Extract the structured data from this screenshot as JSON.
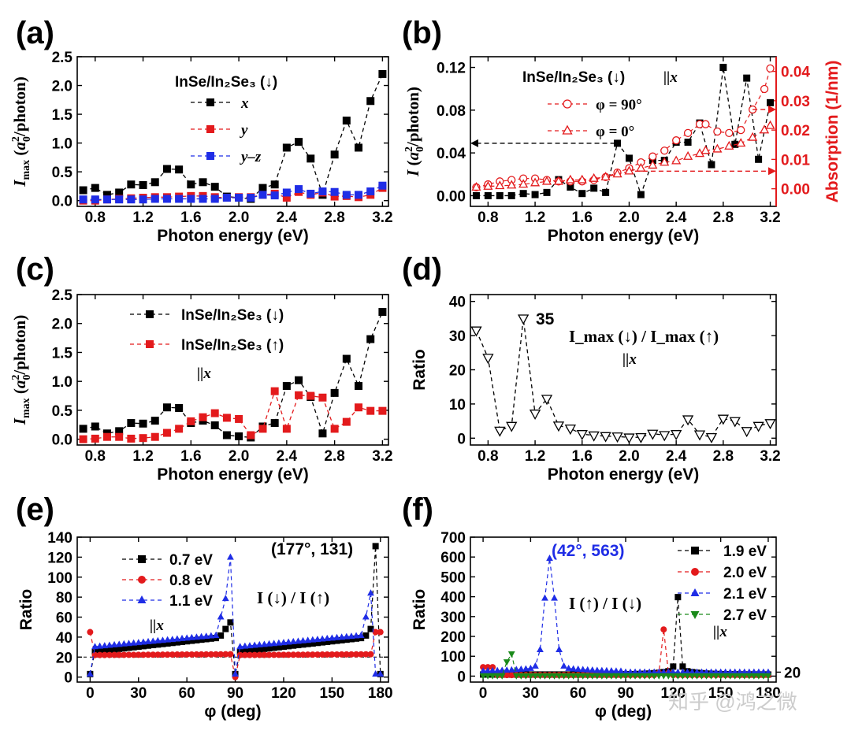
{
  "watermark": "知乎 @鸿之微",
  "chart_data": [
    {
      "id": "a",
      "panel_label": "(a)",
      "type": "line",
      "xlabel": "Photon energy (eV)",
      "ylabel": "I_max (a_0^2/photon)",
      "xlim": [
        0.65,
        3.25
      ],
      "ylim": [
        -0.1,
        2.5
      ],
      "xticks": [
        "0.8",
        "1.2",
        "1.6",
        "2.0",
        "2.4",
        "2.8",
        "3.2"
      ],
      "yticks": [
        "0.0",
        "0.5",
        "1.0",
        "1.5",
        "2.0",
        "2.5"
      ],
      "legend_title": "InSe/In₂Se₃ (↓)",
      "x": [
        0.7,
        0.8,
        0.9,
        1.0,
        1.1,
        1.2,
        1.3,
        1.4,
        1.5,
        1.6,
        1.7,
        1.8,
        1.9,
        2.0,
        2.1,
        2.2,
        2.3,
        2.4,
        2.5,
        2.6,
        2.7,
        2.8,
        2.9,
        3.0,
        3.1,
        3.2
      ],
      "series": [
        {
          "name": "x",
          "color": "#000000",
          "marker": "square",
          "values": [
            0.18,
            0.22,
            0.1,
            0.14,
            0.28,
            0.27,
            0.32,
            0.55,
            0.54,
            0.28,
            0.32,
            0.24,
            0.07,
            0.05,
            0.03,
            0.22,
            0.28,
            0.92,
            1.02,
            0.73,
            0.1,
            0.8,
            1.39,
            0.92,
            1.73,
            2.2
          ]
        },
        {
          "name": "y",
          "color": "#e31a1c",
          "marker": "square",
          "values": [
            0.0,
            0.0,
            0.02,
            0.03,
            0.04,
            0.05,
            0.06,
            0.06,
            0.07,
            0.08,
            0.08,
            0.06,
            0.05,
            0.06,
            0.06,
            0.1,
            0.12,
            0.05,
            0.15,
            0.1,
            0.14,
            0.07,
            0.08,
            0.06,
            0.1,
            0.22
          ]
        },
        {
          "name": "y–z",
          "color": "#1f2de6",
          "marker": "square",
          "values": [
            0.02,
            0.02,
            0.02,
            0.02,
            0.02,
            0.02,
            0.03,
            0.03,
            0.03,
            0.03,
            0.03,
            0.03,
            0.05,
            0.05,
            0.05,
            0.1,
            0.09,
            0.14,
            0.2,
            0.12,
            0.16,
            0.15,
            0.1,
            0.1,
            0.16,
            0.26
          ]
        }
      ]
    },
    {
      "id": "b",
      "panel_label": "(b)",
      "type": "line",
      "xlabel": "Photon energy (eV)",
      "ylabel": "I (a_0^2/photon)",
      "y2label": "Absorption (1/nm)",
      "xlim": [
        0.65,
        3.25
      ],
      "ylim": [
        -0.01,
        0.13
      ],
      "y2lim": [
        -0.006,
        0.045
      ],
      "xticks": [
        "0.8",
        "1.2",
        "1.6",
        "2.0",
        "2.4",
        "2.8",
        "3.2"
      ],
      "yticks": [
        "0.00",
        "0.04",
        "0.08",
        "0.12"
      ],
      "y2ticks": [
        "0.00",
        "0.01",
        "0.02",
        "0.03",
        "0.04"
      ],
      "legend_title": "InSe/In₂Se₃ (↓)",
      "annotation": "||x",
      "x": [
        0.7,
        0.8,
        0.9,
        1.0,
        1.1,
        1.2,
        1.3,
        1.4,
        1.5,
        1.6,
        1.7,
        1.8,
        1.9,
        2.0,
        2.1,
        2.2,
        2.3,
        2.4,
        2.5,
        2.6,
        2.7,
        2.8,
        2.9,
        3.0,
        3.1,
        3.2
      ],
      "I_values": [
        0.0,
        0.0,
        0.0,
        0.0,
        0.002,
        0.001,
        0.003,
        0.015,
        0.008,
        0.002,
        0.007,
        0.003,
        0.049,
        0.035,
        0.001,
        0.033,
        0.033,
        0.05,
        0.05,
        0.068,
        0.029,
        0.12,
        0.048,
        0.11,
        0.034,
        0.087
      ],
      "absorption_series": [
        {
          "name": "φ = 90°",
          "color": "#e31a1c",
          "marker": "circle-open",
          "values": [
            0.0005,
            0.0015,
            0.0025,
            0.003,
            0.0035,
            0.0035,
            0.003,
            0.0025,
            0.0025,
            0.0025,
            0.003,
            0.004,
            0.0055,
            0.007,
            0.009,
            0.011,
            0.013,
            0.0165,
            0.019,
            0.022,
            0.022,
            0.0195,
            0.019,
            0.02,
            0.027,
            0.034,
            0.041
          ]
        },
        {
          "name": "φ = 0°",
          "color": "#e31a1c",
          "marker": "triangle-open",
          "values": [
            0.0005,
            0.0008,
            0.001,
            0.0012,
            0.0015,
            0.002,
            0.0025,
            0.0025,
            0.003,
            0.003,
            0.0035,
            0.004,
            0.005,
            0.006,
            0.007,
            0.008,
            0.009,
            0.0095,
            0.011,
            0.012,
            0.013,
            0.0135,
            0.0145,
            0.0155,
            0.0175,
            0.02,
            0.0215
          ]
        }
      ],
      "absorption_x": [
        0.7,
        0.8,
        0.9,
        1.0,
        1.1,
        1.2,
        1.3,
        1.4,
        1.5,
        1.6,
        1.7,
        1.8,
        1.9,
        2.0,
        2.1,
        2.2,
        2.3,
        2.4,
        2.5,
        2.6,
        2.65,
        2.75,
        2.85,
        2.95,
        3.05,
        3.15,
        3.2
      ]
    },
    {
      "id": "c",
      "panel_label": "(c)",
      "type": "line",
      "xlabel": "Photon energy (eV)",
      "ylabel": "I_max (a_0^2/photon)",
      "xlim": [
        0.65,
        3.25
      ],
      "ylim": [
        -0.1,
        2.5
      ],
      "xticks": [
        "0.8",
        "1.2",
        "1.6",
        "2.0",
        "2.4",
        "2.8",
        "3.2"
      ],
      "yticks": [
        "0.0",
        "0.5",
        "1.0",
        "1.5",
        "2.0",
        "2.5"
      ],
      "annotation": "||x",
      "x": [
        0.7,
        0.8,
        0.9,
        1.0,
        1.1,
        1.2,
        1.3,
        1.4,
        1.5,
        1.6,
        1.7,
        1.8,
        1.9,
        2.0,
        2.1,
        2.2,
        2.3,
        2.4,
        2.5,
        2.6,
        2.7,
        2.8,
        2.9,
        3.0,
        3.1,
        3.2
      ],
      "series": [
        {
          "name": "InSe/In₂Se₃ (↓)",
          "color": "#000000",
          "marker": "square",
          "values": [
            0.18,
            0.22,
            0.1,
            0.14,
            0.28,
            0.27,
            0.32,
            0.55,
            0.54,
            0.28,
            0.32,
            0.24,
            0.07,
            0.05,
            0.03,
            0.22,
            0.28,
            0.92,
            1.02,
            0.73,
            0.1,
            0.8,
            1.39,
            0.92,
            1.73,
            2.2
          ]
        },
        {
          "name": "InSe/In₂Se₃ (↑)",
          "color": "#e31a1c",
          "marker": "square",
          "values": [
            0.0,
            0.01,
            0.04,
            0.04,
            0.01,
            0.02,
            0.04,
            0.11,
            0.18,
            0.31,
            0.38,
            0.45,
            0.37,
            0.35,
            0.07,
            0.18,
            0.83,
            0.18,
            0.76,
            0.75,
            0.72,
            0.18,
            0.3,
            0.55,
            0.49,
            0.49
          ]
        }
      ]
    },
    {
      "id": "d",
      "panel_label": "(d)",
      "type": "line",
      "xlabel": "Photon energy (eV)",
      "ylabel": "Ratio",
      "xlim": [
        0.65,
        3.25
      ],
      "ylim": [
        -2,
        42
      ],
      "xticks": [
        "0.8",
        "1.2",
        "1.6",
        "2.0",
        "2.4",
        "2.8",
        "3.2"
      ],
      "yticks": [
        "0",
        "10",
        "20",
        "30",
        "40"
      ],
      "annotation_peak": "35",
      "annotation_title": "I_max (↓) / I_max (↑)",
      "annotation": "||x",
      "x": [
        0.7,
        0.8,
        0.9,
        1.0,
        1.1,
        1.2,
        1.3,
        1.4,
        1.5,
        1.6,
        1.7,
        1.8,
        1.9,
        2.0,
        2.1,
        2.2,
        2.3,
        2.4,
        2.5,
        2.6,
        2.7,
        2.8,
        2.9,
        3.0,
        3.1,
        3.2
      ],
      "series": [
        {
          "name": "ratio",
          "color": "#000000",
          "marker": "triangle-down-open",
          "values": [
            31.5,
            23.5,
            2.2,
            3.6,
            35,
            7.2,
            11.5,
            3.7,
            2.8,
            1.2,
            0.8,
            0.6,
            0.5,
            0.2,
            0.3,
            1.3,
            0.9,
            1.2,
            5.5,
            1.1,
            0.3,
            5.7,
            5,
            2.1,
            3.6,
            4.4
          ]
        }
      ]
    },
    {
      "id": "e",
      "panel_label": "(e)",
      "type": "line",
      "xlabel": "φ (deg)",
      "ylabel": "Ratio",
      "xlim": [
        -8,
        185
      ],
      "ylim": [
        -5,
        140
      ],
      "xticks": [
        "0",
        "30",
        "60",
        "90",
        "120",
        "150",
        "180"
      ],
      "yticks": [
        "0",
        "20",
        "40",
        "60",
        "80",
        "100",
        "120",
        "140"
      ],
      "annotation_peak": "(177°, 131)",
      "annotation_title": "I (↓) / I (↑)",
      "annotation": "||x",
      "reference_line": 20,
      "series": [
        {
          "name": "0.7 eV",
          "color": "#000000",
          "marker": "square"
        },
        {
          "name": "0.8 eV",
          "color": "#e31a1c",
          "marker": "circle"
        },
        {
          "name": "1.1 eV",
          "color": "#1f2de6",
          "marker": "triangle"
        }
      ]
    },
    {
      "id": "f",
      "panel_label": "(f)",
      "type": "line",
      "xlabel": "φ (deg)",
      "ylabel": "Ratio",
      "xlim": [
        -8,
        185
      ],
      "ylim": [
        -30,
        700
      ],
      "xticks": [
        "0",
        "30",
        "60",
        "90",
        "120",
        "150",
        "180"
      ],
      "yticks": [
        "0",
        "100",
        "200",
        "300",
        "400",
        "500",
        "600",
        "700"
      ],
      "annotation_peak": "(42°, 563)",
      "annotation_title": "I (↑) / I (↓)",
      "annotation": "||x",
      "reference_label": "20",
      "series": [
        {
          "name": "1.9 eV",
          "color": "#000000",
          "marker": "square"
        },
        {
          "name": "2.0 eV",
          "color": "#e31a1c",
          "marker": "circle"
        },
        {
          "name": "2.1 eV",
          "color": "#1f2de6",
          "marker": "triangle"
        },
        {
          "name": "2.7 eV",
          "color": "#1a8a1a",
          "marker": "triangle-down"
        }
      ]
    }
  ]
}
